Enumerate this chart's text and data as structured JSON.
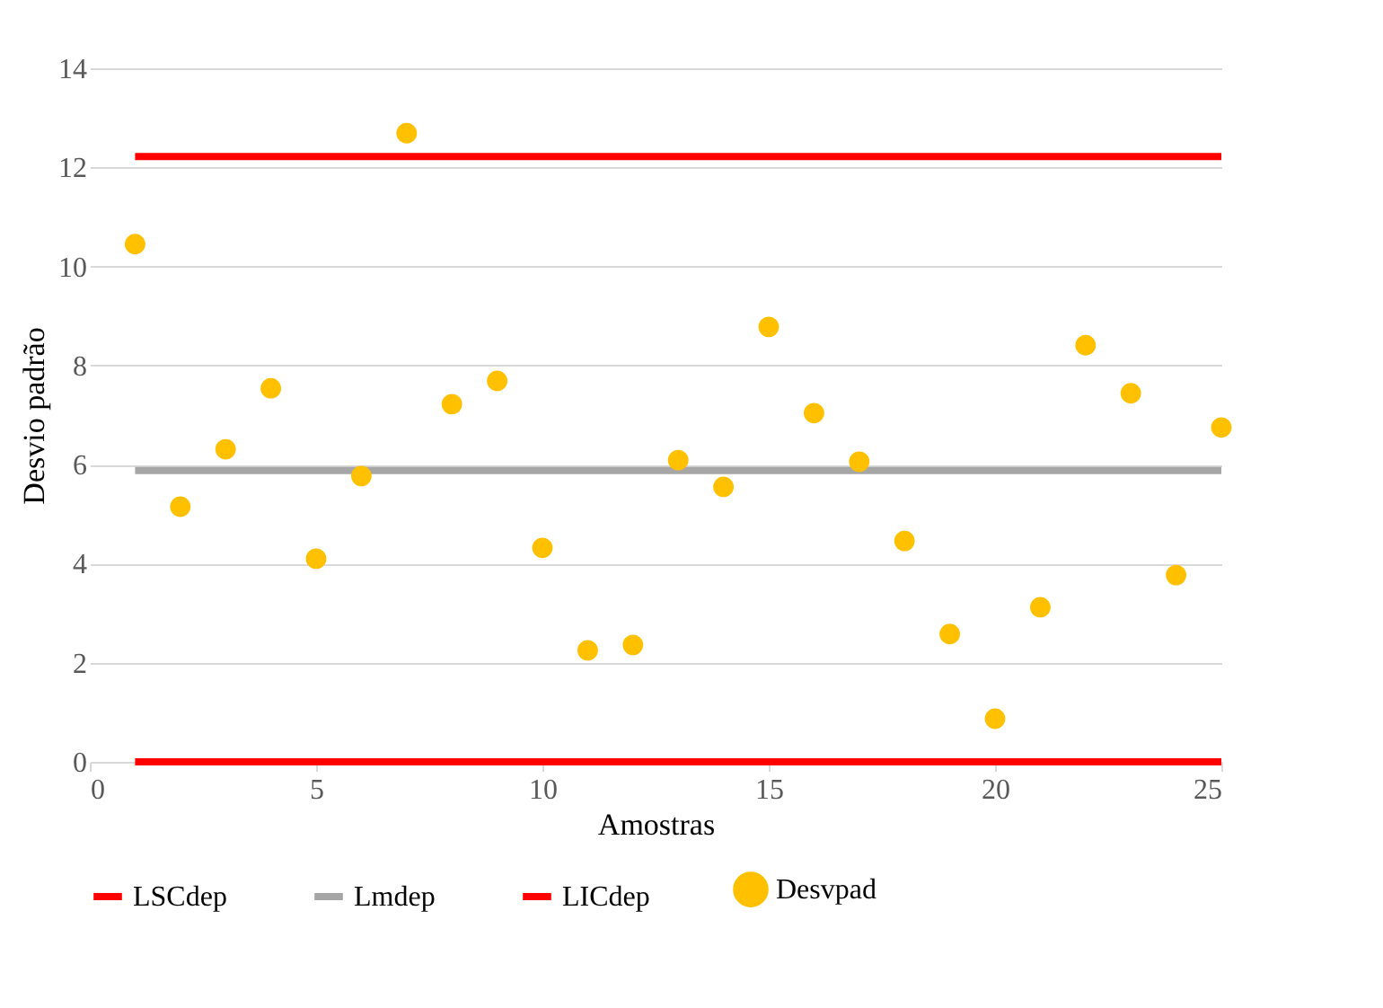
{
  "chart_data": {
    "type": "scatter",
    "xlabel": "Amostras",
    "ylabel": "Desvio padrão",
    "xlim": [
      0,
      25
    ],
    "xticks": [
      0,
      5,
      10,
      15,
      20,
      25
    ],
    "ylim": [
      0,
      14
    ],
    "yticks": [
      0,
      2,
      4,
      6,
      8,
      10,
      12,
      14
    ],
    "grid": "y",
    "legend": "bottom",
    "series": [
      {
        "name": "LSCdep",
        "type": "line",
        "color": "#ff0000",
        "marker": "none",
        "x": [
          1,
          25
        ],
        "values": [
          12.22,
          12.22
        ]
      },
      {
        "name": "Lmdep",
        "type": "line",
        "color": "#a6a6a6",
        "marker": "none",
        "x": [
          1,
          25
        ],
        "values": [
          5.88,
          5.88
        ]
      },
      {
        "name": "LICdep",
        "type": "line",
        "color": "#ff0000",
        "marker": "none",
        "x": [
          1,
          25
        ],
        "values": [
          0,
          0
        ]
      },
      {
        "name": "Desvpad",
        "color": "#ffc000",
        "marker": "circle",
        "x": [
          1,
          2,
          3,
          4,
          5,
          6,
          7,
          8,
          9,
          10,
          11,
          12,
          13,
          14,
          15,
          16,
          17,
          18,
          19,
          20,
          21,
          22,
          23,
          24,
          25
        ],
        "values": [
          10.45,
          5.15,
          6.31,
          7.54,
          4.1,
          5.77,
          12.69,
          7.22,
          7.69,
          4.32,
          2.25,
          2.36,
          6.09,
          5.55,
          8.78,
          7.04,
          6.06,
          4.46,
          2.58,
          0.87,
          3.12,
          8.41,
          7.44,
          3.77,
          6.75
        ]
      }
    ]
  }
}
